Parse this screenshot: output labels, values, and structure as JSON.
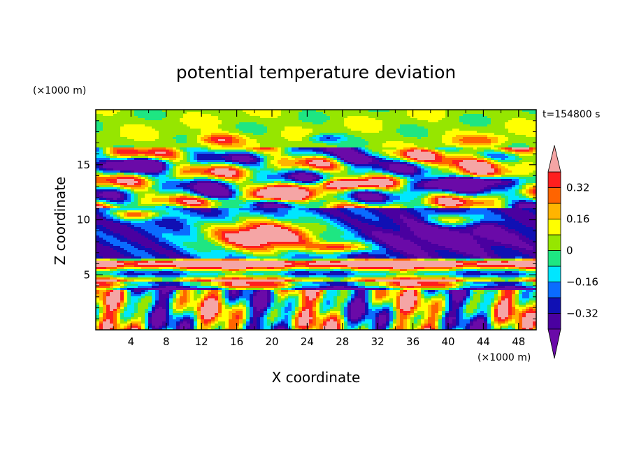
{
  "chart_data": {
    "type": "heatmap",
    "title": "potential temperature deviation",
    "xlabel": "X coordinate",
    "ylabel": "Z coordinate",
    "x_unit": "(×1000 m)",
    "y_unit": "(×1000 m)",
    "time_label": "t=154800 s",
    "xlim": [
      0,
      50
    ],
    "ylim": [
      0,
      20
    ],
    "x_ticks": [
      4,
      8,
      12,
      16,
      20,
      24,
      28,
      32,
      36,
      40,
      44,
      48
    ],
    "y_ticks": [
      5,
      10,
      15
    ],
    "colorbar": {
      "levels": [
        -0.4,
        -0.32,
        -0.24,
        -0.16,
        -0.08,
        0,
        0.08,
        0.16,
        0.24,
        0.32,
        0.4
      ],
      "labels": [
        "0.32",
        "0.16",
        "0",
        "−0.16",
        "−0.32"
      ],
      "label_values": [
        0.32,
        0.16,
        0,
        -0.16,
        -0.32
      ],
      "colors": [
        "#6a0aa8",
        "#4a00a0",
        "#1010b4",
        "#0a6cff",
        "#00e6ff",
        "#1ee682",
        "#96e600",
        "#ffff00",
        "#ffb400",
        "#ff6400",
        "#ff1e1e",
        "#f5a5a5"
      ],
      "extend": "both"
    }
  }
}
